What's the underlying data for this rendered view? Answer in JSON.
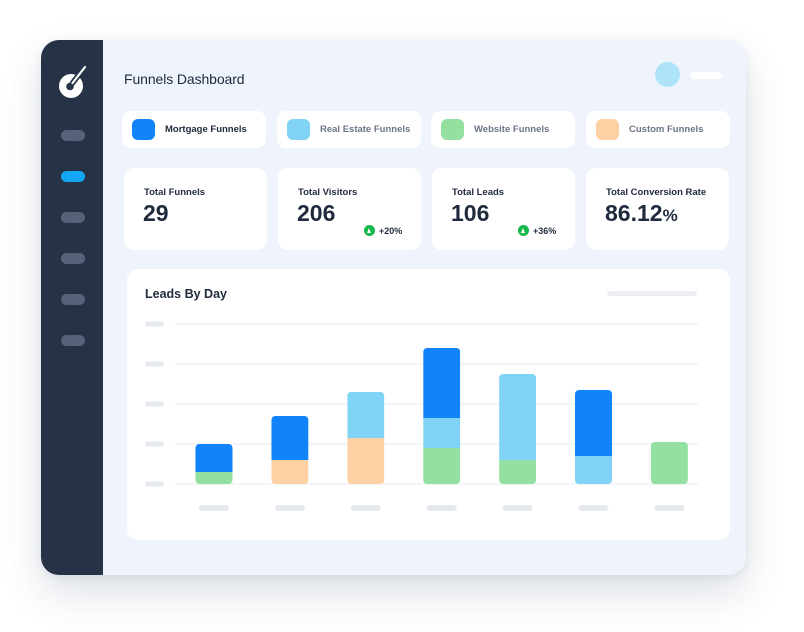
{
  "header": {
    "title": "Funnels Dashboard"
  },
  "legend": [
    {
      "label": "Mortgage Funnels",
      "color": "#1284fb"
    },
    {
      "label": "Real Estate Funnels",
      "color": "#81d3f5"
    },
    {
      "label": "Website Funnels",
      "color": "#94e0a1"
    },
    {
      "label": "Custom Funnels",
      "color": "#fed1a5"
    }
  ],
  "stats": [
    {
      "label": "Total Funnels",
      "value": "29",
      "unit": "",
      "change": ""
    },
    {
      "label": "Total Visitors",
      "value": "206",
      "unit": "",
      "change": "+20%"
    },
    {
      "label": "Total Leads",
      "value": "106",
      "unit": "",
      "change": "+36%"
    },
    {
      "label": "Total Conversion Rate",
      "value": "86.12",
      "unit": "%",
      "change": ""
    }
  ],
  "chart": {
    "title": "Leads By Day"
  },
  "chart_data": {
    "type": "bar",
    "stacked": true,
    "categories": [
      "",
      "",
      "",
      "",
      "",
      "",
      ""
    ],
    "ylim": [
      0,
      4
    ],
    "grid": true,
    "series": [
      {
        "name": "Website Funnels",
        "color": "#94e0a1",
        "values": [
          0.3,
          0,
          0,
          0.9,
          0.6,
          0,
          1.05
        ]
      },
      {
        "name": "Custom Funnels",
        "color": "#fed1a5",
        "values": [
          0,
          0.6,
          1.15,
          0,
          0,
          0,
          0
        ]
      },
      {
        "name": "Real Estate Funnels",
        "color": "#81d3f5",
        "values": [
          0,
          0,
          1.15,
          0.75,
          2.15,
          0.7,
          0
        ]
      },
      {
        "name": "Mortgage Funnels",
        "color": "#1284fb",
        "values": [
          0.7,
          1.1,
          0,
          1.75,
          0,
          1.65,
          0
        ]
      }
    ]
  }
}
